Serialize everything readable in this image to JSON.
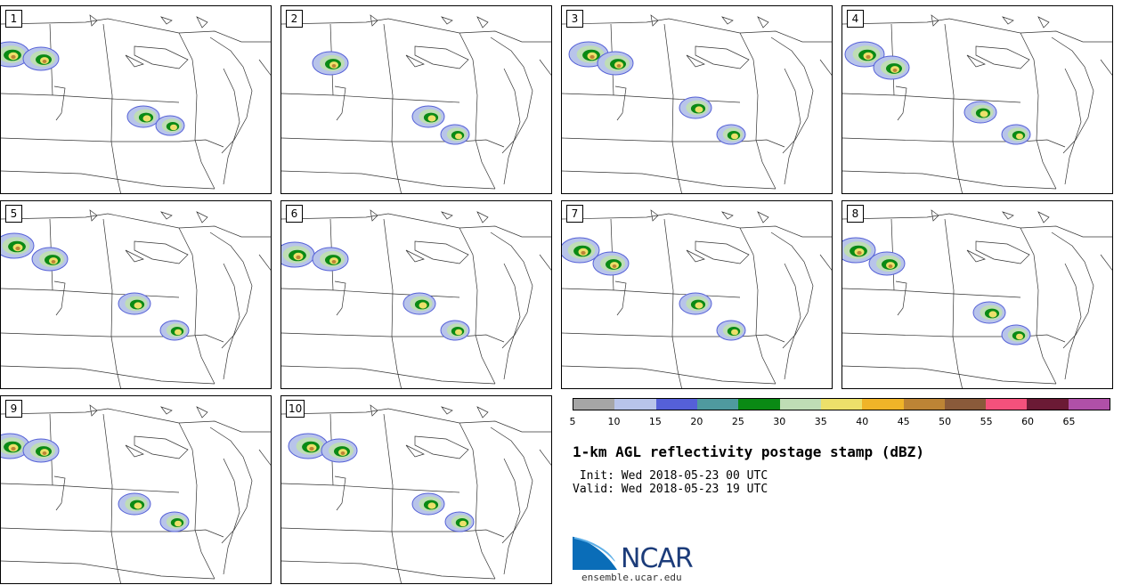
{
  "panels": [
    {
      "label": "1"
    },
    {
      "label": "2"
    },
    {
      "label": "3"
    },
    {
      "label": "4"
    },
    {
      "label": "5"
    },
    {
      "label": "6"
    },
    {
      "label": "7"
    },
    {
      "label": "8"
    },
    {
      "label": "9"
    },
    {
      "label": "10"
    }
  ],
  "legend": {
    "colors": [
      "#a6a6a6",
      "#b8c4ea",
      "#5560d8",
      "#4f9a9f",
      "#0a8a14",
      "#bfddb5",
      "#ece06a",
      "#f0b428",
      "#bd8435",
      "#8a5a3a",
      "#f4517c",
      "#6b1a35",
      "#b050a8"
    ],
    "ticks": [
      "5",
      "10",
      "15",
      "20",
      "25",
      "30",
      "35",
      "40",
      "45",
      "50",
      "55",
      "60",
      "65"
    ]
  },
  "title": "1-km AGL reflectivity postage stamp (dBZ)",
  "init_line": " Init: Wed 2018-05-23 00 UTC",
  "valid_line": "Valid: Wed 2018-05-23 19 UTC",
  "logo": {
    "wordmark": "NCAR",
    "site": "ensemble.ucar.edu"
  }
}
